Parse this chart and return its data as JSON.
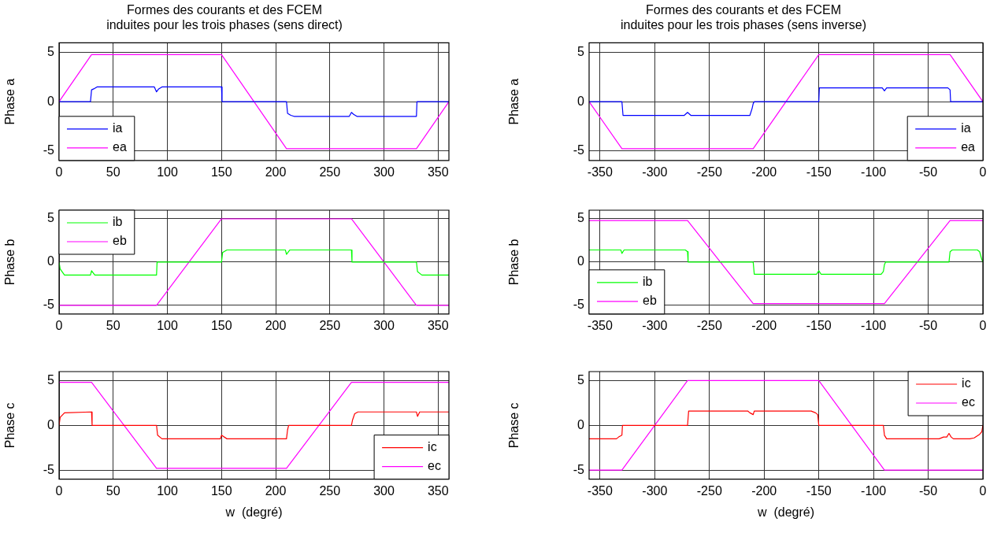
{
  "chart_data": [
    {
      "type": "line",
      "title": "Formes des courants et des FCEM\ninduites pour les trois phases (sens direct)",
      "ylabel": "Phase a",
      "xlim": [
        0,
        360
      ],
      "xticks": [
        0,
        50,
        100,
        150,
        200,
        250,
        300,
        350
      ],
      "ylim": [
        -6,
        6
      ],
      "yticks": [
        -5,
        0,
        5
      ],
      "grid": true,
      "legend": "bottom left",
      "series": [
        {
          "name": "ia",
          "color": "#0000ff",
          "x": [
            0,
            29,
            30,
            32,
            35,
            88,
            90,
            92,
            95,
            150,
            150.5,
            210,
            211,
            214,
            217,
            268,
            270,
            272,
            275,
            330,
            330.5,
            360
          ],
          "values": [
            0,
            0,
            1.2,
            1.3,
            1.5,
            1.5,
            1.0,
            1.3,
            1.5,
            1.5,
            0,
            0,
            -1.2,
            -1.4,
            -1.5,
            -1.5,
            -1.1,
            -1.3,
            -1.5,
            -1.5,
            0,
            0
          ]
        },
        {
          "name": "ea",
          "color": "#ff00ff",
          "x": [
            0,
            30,
            150,
            210,
            330,
            360
          ],
          "values": [
            0,
            4.8,
            4.8,
            -4.8,
            -4.8,
            0
          ]
        }
      ]
    },
    {
      "type": "line",
      "title": "Formes des courants et des FCEM\ninduites pour les trois phases (sens inverse)",
      "ylabel": "Phase a",
      "xlim": [
        -360,
        0
      ],
      "xticks": [
        -350,
        -300,
        -250,
        -200,
        -150,
        -100,
        -50,
        0
      ],
      "ylim": [
        -6,
        6
      ],
      "yticks": [
        -5,
        0,
        5
      ],
      "grid": true,
      "legend": "bottom right",
      "series": [
        {
          "name": "ia",
          "color": "#0000ff",
          "x": [
            -360,
            -330,
            -329,
            -273,
            -270,
            -267,
            -213,
            -211,
            -210,
            -209,
            -150,
            -149.5,
            -92,
            -90,
            -88,
            -32,
            -30,
            -29.5,
            0
          ],
          "values": [
            0,
            0,
            -1.4,
            -1.4,
            -1.1,
            -1.4,
            -1.4,
            -0.7,
            -0.2,
            0,
            0,
            1.4,
            1.4,
            1.1,
            1.4,
            1.4,
            1.2,
            0,
            0
          ]
        },
        {
          "name": "ea",
          "color": "#ff00ff",
          "x": [
            -360,
            -330,
            -210,
            -150,
            -30,
            0
          ],
          "values": [
            0,
            -4.8,
            -4.8,
            4.8,
            4.8,
            0
          ]
        }
      ]
    },
    {
      "type": "line",
      "ylabel": "Phase b",
      "xlim": [
        0,
        360
      ],
      "xticks": [
        0,
        50,
        100,
        150,
        200,
        250,
        300,
        350
      ],
      "ylim": [
        -6,
        6
      ],
      "yticks": [
        -5,
        0,
        5
      ],
      "grid": true,
      "legend": "top left",
      "series": [
        {
          "name": "ib",
          "color": "#00ff00",
          "x": [
            0,
            1,
            5,
            29,
            30,
            33,
            90,
            90.5,
            150,
            151,
            155,
            209,
            210,
            213,
            270,
            270.5,
            330,
            331,
            335,
            360
          ],
          "values": [
            0,
            -0.8,
            -1.5,
            -1.5,
            -1.0,
            -1.5,
            -1.5,
            0,
            0,
            1.1,
            1.4,
            1.4,
            0.9,
            1.4,
            1.4,
            0,
            0,
            -1.1,
            -1.5,
            -1.5
          ]
        },
        {
          "name": "eb",
          "color": "#ff00ff",
          "x": [
            0,
            90,
            150,
            270,
            330,
            360
          ],
          "values": [
            -5,
            -5,
            5,
            5,
            -5,
            -5
          ]
        }
      ]
    },
    {
      "type": "line",
      "ylabel": "Phase b",
      "xlim": [
        -360,
        0
      ],
      "xticks": [
        -350,
        -300,
        -250,
        -200,
        -150,
        -100,
        -50,
        0
      ],
      "ylim": [
        -6,
        6
      ],
      "yticks": [
        -5,
        0,
        5
      ],
      "grid": true,
      "legend": "bottom left",
      "series": [
        {
          "name": "ib",
          "color": "#00ff00",
          "x": [
            -360,
            -331,
            -330,
            -328,
            -272,
            -270,
            -269.5,
            -210,
            -209,
            -152,
            -150,
            -148,
            -93,
            -91,
            -90,
            -89,
            -31,
            -30,
            -28,
            -5,
            -3,
            -1,
            0
          ],
          "values": [
            1.4,
            1.4,
            1.0,
            1.4,
            1.4,
            1.2,
            0,
            0,
            -1.4,
            -1.4,
            -1.0,
            -1.4,
            -1.4,
            -1.1,
            -0.3,
            0,
            0,
            1.2,
            1.4,
            1.4,
            1.2,
            0.3,
            0
          ]
        },
        {
          "name": "eb",
          "color": "#ff00ff",
          "x": [
            -360,
            -270,
            -210,
            -90,
            -30,
            0
          ],
          "values": [
            4.8,
            4.8,
            -4.8,
            -4.8,
            4.8,
            4.8
          ]
        }
      ]
    },
    {
      "type": "line",
      "xlabel": "w  (degré)",
      "ylabel": "Phase c",
      "xlim": [
        0,
        360
      ],
      "xticks": [
        0,
        50,
        100,
        150,
        200,
        250,
        300,
        350
      ],
      "ylim": [
        -6,
        6
      ],
      "yticks": [
        -5,
        0,
        5
      ],
      "grid": true,
      "legend": "bottom right",
      "series": [
        {
          "name": "ic",
          "color": "#ff0000",
          "x": [
            0,
            1,
            5,
            30,
            30.5,
            90,
            91,
            95,
            149,
            150,
            155,
            210,
            211,
            212,
            270,
            271,
            273,
            276,
            330,
            331,
            333,
            360
          ],
          "values": [
            0,
            0.9,
            1.4,
            1.5,
            0,
            0,
            -1.1,
            -1.5,
            -1.5,
            -1.1,
            -1.5,
            -1.5,
            -0.5,
            0,
            0,
            0.6,
            1.3,
            1.5,
            1.5,
            1.0,
            1.5,
            1.5
          ]
        },
        {
          "name": "ec",
          "color": "#ff00ff",
          "x": [
            0,
            30,
            90,
            210,
            270,
            360
          ],
          "values": [
            4.8,
            4.8,
            -4.8,
            -4.8,
            4.8,
            4.8
          ]
        }
      ]
    },
    {
      "type": "line",
      "xlabel": "w  (degré)",
      "ylabel": "Phase c",
      "xlim": [
        -360,
        0
      ],
      "xticks": [
        -350,
        -300,
        -250,
        -200,
        -150,
        -100,
        -50,
        0
      ],
      "ylim": [
        -6,
        6
      ],
      "yticks": [
        -5,
        0,
        5
      ],
      "grid": true,
      "legend": "top right",
      "series": [
        {
          "name": "ic",
          "color": "#ff0000",
          "x": [
            -360,
            -335,
            -333,
            -330,
            -329.5,
            -270,
            -269,
            -215,
            -213,
            -210,
            -209,
            -157,
            -153,
            -151,
            -150,
            -91,
            -90,
            -88,
            -40,
            -36,
            -33,
            -31,
            -29,
            -27,
            -12,
            -8,
            -3,
            -1,
            0
          ],
          "values": [
            -1.5,
            -1.5,
            -1.3,
            -1.1,
            0,
            0,
            1.6,
            1.6,
            1.4,
            1.2,
            1.6,
            1.6,
            1.4,
            1.2,
            0,
            0,
            -1.1,
            -1.5,
            -1.5,
            -1.3,
            -1.3,
            -0.9,
            -1.3,
            -1.5,
            -1.5,
            -1.4,
            -1.0,
            -0.7,
            0
          ]
        },
        {
          "name": "ec",
          "color": "#ff00ff",
          "x": [
            -360,
            -330,
            -270,
            -150,
            -90,
            0
          ],
          "values": [
            -5,
            -5,
            5,
            5,
            -5,
            -5
          ]
        }
      ]
    }
  ]
}
